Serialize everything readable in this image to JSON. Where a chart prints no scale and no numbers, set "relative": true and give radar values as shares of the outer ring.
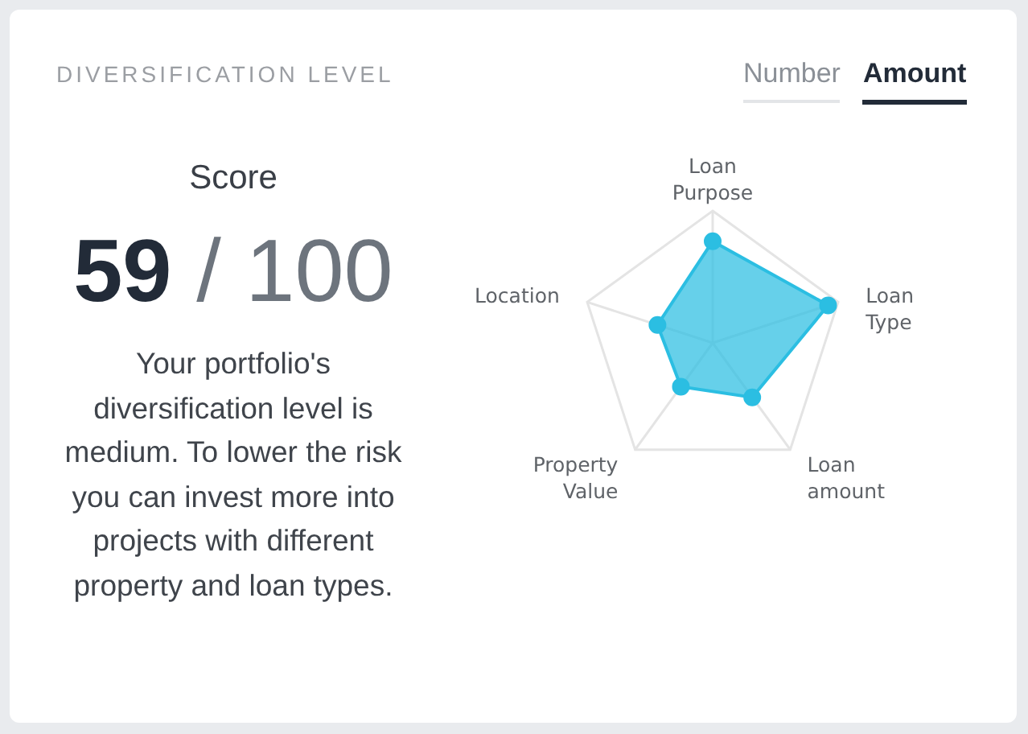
{
  "chart_data": {
    "type": "radar",
    "title": "DIVERSIFICATION LEVEL",
    "categories": [
      "Loan Purpose",
      "Loan Type",
      "Loan amount",
      "Property Value",
      "Location"
    ],
    "series": [
      {
        "color": "#2bbee2",
        "values": [
          0.77,
          0.92,
          0.51,
          0.41,
          0.44
        ]
      }
    ],
    "relative": true,
    "grid": true,
    "marker": "circle",
    "annotations": [
      "Number",
      "Amount",
      "Score",
      "59",
      "/ 100",
      "Your portfolio's diversification level is medium. To lower the risk you can invest more into projects with different property and loan types."
    ]
  }
}
